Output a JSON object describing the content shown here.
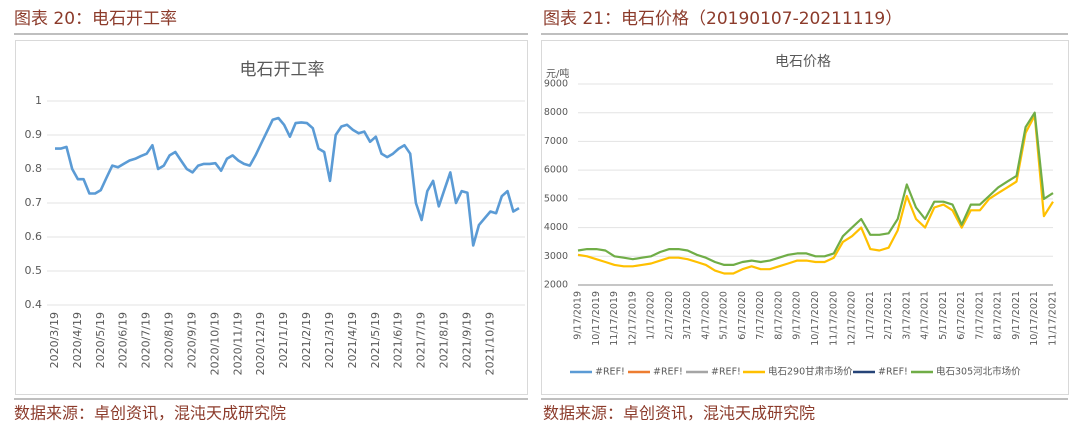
{
  "figures": [
    {
      "caption": "图表 20：电石开工率",
      "source": "数据来源：卓创资讯，混沌天成研究院"
    },
    {
      "caption": "图表 21：电石价格（20190107-20211119）",
      "source": "数据来源：卓创资讯，混沌天成研究院"
    }
  ],
  "chart_data": [
    {
      "type": "line",
      "title": "电石开工率",
      "categories": [
        "2020/3/19",
        null,
        null,
        null,
        "2020/4/19",
        null,
        null,
        null,
        "2020/5/19",
        null,
        null,
        null,
        "2020/6/19",
        null,
        null,
        null,
        "2020/7/19",
        null,
        null,
        null,
        "2020/8/19",
        null,
        null,
        null,
        "2020/9/19",
        null,
        null,
        null,
        "2020/10/19",
        null,
        null,
        null,
        "2020/11/19",
        null,
        null,
        null,
        "2020/12/19",
        null,
        null,
        null,
        "2021/1/19",
        null,
        null,
        null,
        "2021/2/19",
        null,
        null,
        null,
        "2021/3/19",
        null,
        null,
        null,
        "2021/4/19",
        null,
        null,
        null,
        "2021/5/19",
        null,
        null,
        null,
        "2021/6/19",
        null,
        null,
        null,
        "2021/7/19",
        null,
        null,
        null,
        "2021/8/19",
        null,
        null,
        null,
        "2021/9/19",
        null,
        null,
        null,
        "2021/10/19",
        null,
        null,
        null,
        null,
        null
      ],
      "series": [
        {
          "color": "#5b9bd5",
          "values": [
            0.86,
            0.86,
            0.865,
            0.8,
            0.77,
            0.77,
            0.728,
            0.728,
            0.738,
            0.775,
            0.81,
            0.805,
            0.815,
            0.825,
            0.83,
            0.838,
            0.845,
            0.87,
            0.8,
            0.81,
            0.84,
            0.85,
            0.825,
            0.8,
            0.79,
            0.81,
            0.815,
            0.815,
            0.817,
            0.795,
            0.83,
            0.84,
            0.825,
            0.815,
            0.81,
            0.84,
            0.875,
            0.91,
            0.945,
            0.95,
            0.93,
            0.895,
            0.935,
            0.937,
            0.935,
            0.92,
            0.86,
            0.85,
            0.765,
            0.9,
            0.925,
            0.93,
            0.915,
            0.905,
            0.91,
            0.88,
            0.895,
            0.845,
            0.835,
            0.845,
            0.86,
            0.87,
            0.845,
            0.7,
            0.65,
            0.735,
            0.765,
            0.69,
            0.74,
            0.79,
            0.7,
            0.735,
            0.73,
            0.575,
            0.635,
            0.655,
            0.675,
            0.67,
            0.72,
            0.735,
            0.675,
            0.685
          ]
        }
      ],
      "ylim": [
        0.4,
        1
      ],
      "yticks": [
        0.4,
        0.5,
        0.6,
        0.7,
        0.8,
        0.9,
        1
      ],
      "grid": true
    },
    {
      "type": "line",
      "title": "电石价格",
      "y_label": "元/吨",
      "categories": [
        "9/17/2019",
        null,
        "10/17/2019",
        null,
        "11/17/2019",
        null,
        "12/17/2019",
        null,
        "1/17/2020",
        null,
        "2/17/2020",
        null,
        "3/17/2020",
        null,
        "4/17/2020",
        null,
        "5/17/2020",
        null,
        "6/17/2020",
        null,
        "7/17/2020",
        null,
        "8/17/2020",
        null,
        "9/17/2020",
        null,
        "10/17/2020",
        null,
        "11/17/2020",
        null,
        "12/17/2020",
        null,
        "1/17/2021",
        null,
        "2/17/2021",
        null,
        "3/17/2021",
        null,
        "4/17/2021",
        null,
        "5/17/2021",
        null,
        "6/17/2021",
        null,
        "7/17/2021",
        null,
        "8/17/2021",
        null,
        "9/17/2021",
        null,
        "10/17/2021",
        null,
        "11/17/2021"
      ],
      "series": [
        {
          "name": "#REF!",
          "color": "#5b9bd5",
          "values": [
            null,
            null,
            null,
            null,
            null,
            null,
            null,
            null,
            null,
            null,
            null,
            null,
            null,
            null,
            null,
            null,
            null,
            null,
            null,
            null,
            null,
            null,
            null,
            null,
            null,
            null,
            null,
            null,
            null,
            null,
            null,
            null,
            null,
            null,
            null,
            null,
            null,
            null,
            null,
            null,
            null,
            null,
            null,
            null,
            null,
            null,
            null,
            null,
            null,
            null,
            null,
            null,
            null
          ]
        },
        {
          "name": "#REF!",
          "color": "#ed7d31",
          "values": [
            null,
            null,
            null,
            null,
            null,
            null,
            null,
            null,
            null,
            null,
            null,
            null,
            null,
            null,
            null,
            null,
            null,
            null,
            null,
            null,
            null,
            null,
            null,
            null,
            null,
            null,
            null,
            null,
            null,
            null,
            null,
            null,
            null,
            null,
            null,
            null,
            null,
            null,
            null,
            null,
            null,
            null,
            null,
            null,
            null,
            null,
            null,
            null,
            null,
            null,
            null,
            null,
            null
          ]
        },
        {
          "name": "#REF!",
          "color": "#a5a5a5",
          "values": [
            null,
            null,
            null,
            null,
            null,
            null,
            null,
            null,
            null,
            null,
            null,
            null,
            null,
            null,
            null,
            null,
            null,
            null,
            null,
            null,
            null,
            null,
            null,
            null,
            null,
            null,
            null,
            null,
            null,
            null,
            null,
            null,
            null,
            null,
            null,
            null,
            null,
            null,
            null,
            null,
            null,
            null,
            null,
            null,
            null,
            null,
            null,
            null,
            null,
            null,
            null,
            null,
            null
          ]
        },
        {
          "name": "电石290甘肃市场价",
          "color": "#ffc000",
          "values": [
            3050,
            3000,
            2900,
            2800,
            2700,
            2650,
            2650,
            2700,
            2750,
            2850,
            2950,
            2950,
            2900,
            2800,
            2700,
            2500,
            2400,
            2400,
            2550,
            2650,
            2550,
            2550,
            2650,
            2750,
            2850,
            2850,
            2800,
            2800,
            2950,
            3500,
            3700,
            4000,
            3250,
            3200,
            3300,
            3900,
            5100,
            4300,
            4000,
            4700,
            4800,
            4600,
            4000,
            4600,
            4600,
            5000,
            5200,
            5400,
            5600,
            7300,
            7900,
            4400,
            4900
          ]
        },
        {
          "name": "#REF!",
          "color": "#264478",
          "values": [
            null,
            null,
            null,
            null,
            null,
            null,
            null,
            null,
            null,
            null,
            null,
            null,
            null,
            null,
            null,
            null,
            null,
            null,
            null,
            null,
            null,
            null,
            null,
            null,
            null,
            null,
            null,
            null,
            null,
            null,
            null,
            null,
            null,
            null,
            null,
            null,
            null,
            null,
            null,
            null,
            null,
            null,
            null,
            null,
            null,
            null,
            null,
            null,
            null,
            null,
            null,
            null,
            null
          ]
        },
        {
          "name": "电石305河北市场价",
          "color": "#70ad47",
          "values": [
            3200,
            3250,
            3250,
            3200,
            3000,
            2950,
            2900,
            2950,
            3000,
            3150,
            3250,
            3250,
            3200,
            3050,
            2950,
            2800,
            2700,
            2700,
            2800,
            2850,
            2800,
            2850,
            2950,
            3050,
            3100,
            3100,
            3000,
            3000,
            3100,
            3700,
            4000,
            4300,
            3750,
            3750,
            3800,
            4300,
            5500,
            4700,
            4300,
            4900,
            4900,
            4800,
            4100,
            4800,
            4800,
            5100,
            5400,
            5600,
            5800,
            7500,
            8000,
            5000,
            5200
          ]
        }
      ],
      "ylim": [
        2000,
        9000
      ],
      "yticks": [
        2000,
        3000,
        4000,
        5000,
        6000,
        7000,
        8000,
        9000
      ],
      "grid": true,
      "legend": "bottom"
    }
  ]
}
